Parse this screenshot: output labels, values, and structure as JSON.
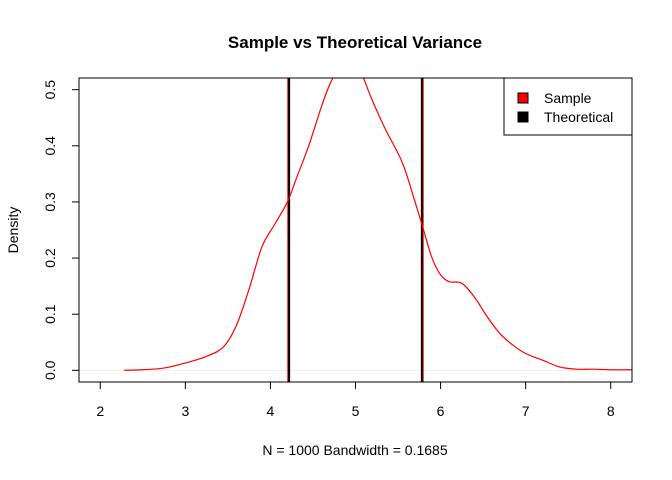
{
  "chart_data": {
    "type": "line",
    "title": "Sample vs Theoretical Variance",
    "xlabel": "N = 1000   Bandwidth = 0.1685",
    "ylabel": "Density",
    "xlim": [
      1.75,
      8.25
    ],
    "ylim": [
      -0.0208,
      0.5208
    ],
    "x_ticks": [
      2,
      3,
      4,
      5,
      6,
      7,
      8
    ],
    "y_ticks": [
      0.0,
      0.1,
      0.2,
      0.3,
      0.4,
      0.5
    ],
    "x_tick_labels": [
      "2",
      "3",
      "4",
      "5",
      "6",
      "7",
      "8"
    ],
    "y_tick_labels": [
      "0.0",
      "0.1",
      "0.2",
      "0.3",
      "0.4",
      "0.5"
    ],
    "grid": false,
    "legend_position": "top-right",
    "series": [
      {
        "name": "Sample",
        "color": "#ff0000",
        "x": [
          2.28,
          2.5,
          2.75,
          3.0,
          3.25,
          3.45,
          3.6,
          3.75,
          3.9,
          4.05,
          4.2,
          4.3,
          4.45,
          4.6,
          4.7,
          4.8,
          4.95,
          5.05,
          5.2,
          5.35,
          5.55,
          5.7,
          5.8,
          5.9,
          6.0,
          6.1,
          6.25,
          6.4,
          6.55,
          6.7,
          6.85,
          7.0,
          7.2,
          7.4,
          7.6,
          7.8,
          8.0,
          8.25
        ],
        "y": [
          0.0,
          0.001,
          0.004,
          0.013,
          0.025,
          0.042,
          0.08,
          0.145,
          0.22,
          0.26,
          0.3,
          0.34,
          0.4,
          0.47,
          0.51,
          0.535,
          0.545,
          0.535,
          0.48,
          0.43,
          0.37,
          0.3,
          0.25,
          0.2,
          0.17,
          0.158,
          0.155,
          0.13,
          0.095,
          0.065,
          0.045,
          0.03,
          0.018,
          0.006,
          0.002,
          0.002,
          0.001,
          0.001
        ]
      },
      {
        "name": "Theoretical",
        "color": "#000000"
      }
    ],
    "vertical_lines": [
      {
        "series": "Sample",
        "color": "#ff0000",
        "x": [
          4.21,
          5.79
        ]
      },
      {
        "series": "Theoretical",
        "color": "#000000",
        "x": [
          4.22,
          5.78
        ]
      }
    ],
    "reference_lines": [
      {
        "type": "horizontal",
        "y": 0,
        "color": "#eeeeee"
      }
    ]
  }
}
